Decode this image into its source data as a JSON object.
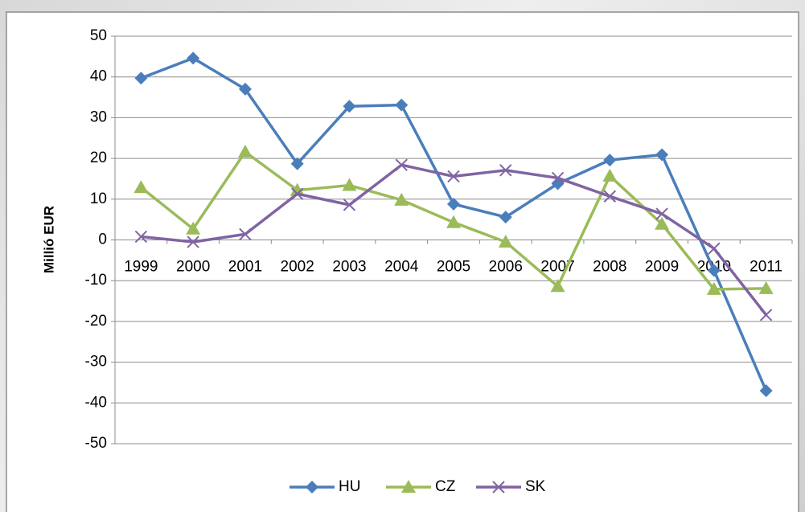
{
  "chart_data": {
    "type": "line",
    "y_label": "Millió EUR",
    "categories": [
      "1999",
      "2000",
      "2001",
      "2002",
      "2003",
      "2004",
      "2005",
      "2006",
      "2007",
      "2008",
      "2009",
      "2010",
      "2011"
    ],
    "series": [
      {
        "name": "HU",
        "color": "#4a7ebb",
        "marker": "diamond",
        "values": [
          39.7,
          44.6,
          37,
          18.7,
          32.8,
          33.1,
          8.8,
          5.6,
          13.8,
          19.6,
          20.9,
          -7.5,
          -37
        ]
      },
      {
        "name": "CZ",
        "color": "#9bbb59",
        "marker": "triangle",
        "values": [
          12.9,
          2.7,
          21.6,
          12.2,
          13.4,
          9.8,
          4.3,
          -0.5,
          -11.4,
          15.7,
          3.9,
          -12.1,
          -11.9
        ]
      },
      {
        "name": "SK",
        "color": "#8064a2",
        "marker": "x",
        "values": [
          0.8,
          -0.5,
          1.4,
          11.3,
          8.6,
          18.4,
          15.6,
          17.1,
          15.2,
          10.7,
          6.4,
          -2.1,
          -18.4
        ]
      }
    ],
    "ylim": [
      -50,
      50
    ],
    "yticks": [
      -50,
      -40,
      -30,
      -20,
      -10,
      0,
      10,
      20,
      30,
      40,
      50
    ],
    "grid": true,
    "legend": "bottom"
  }
}
